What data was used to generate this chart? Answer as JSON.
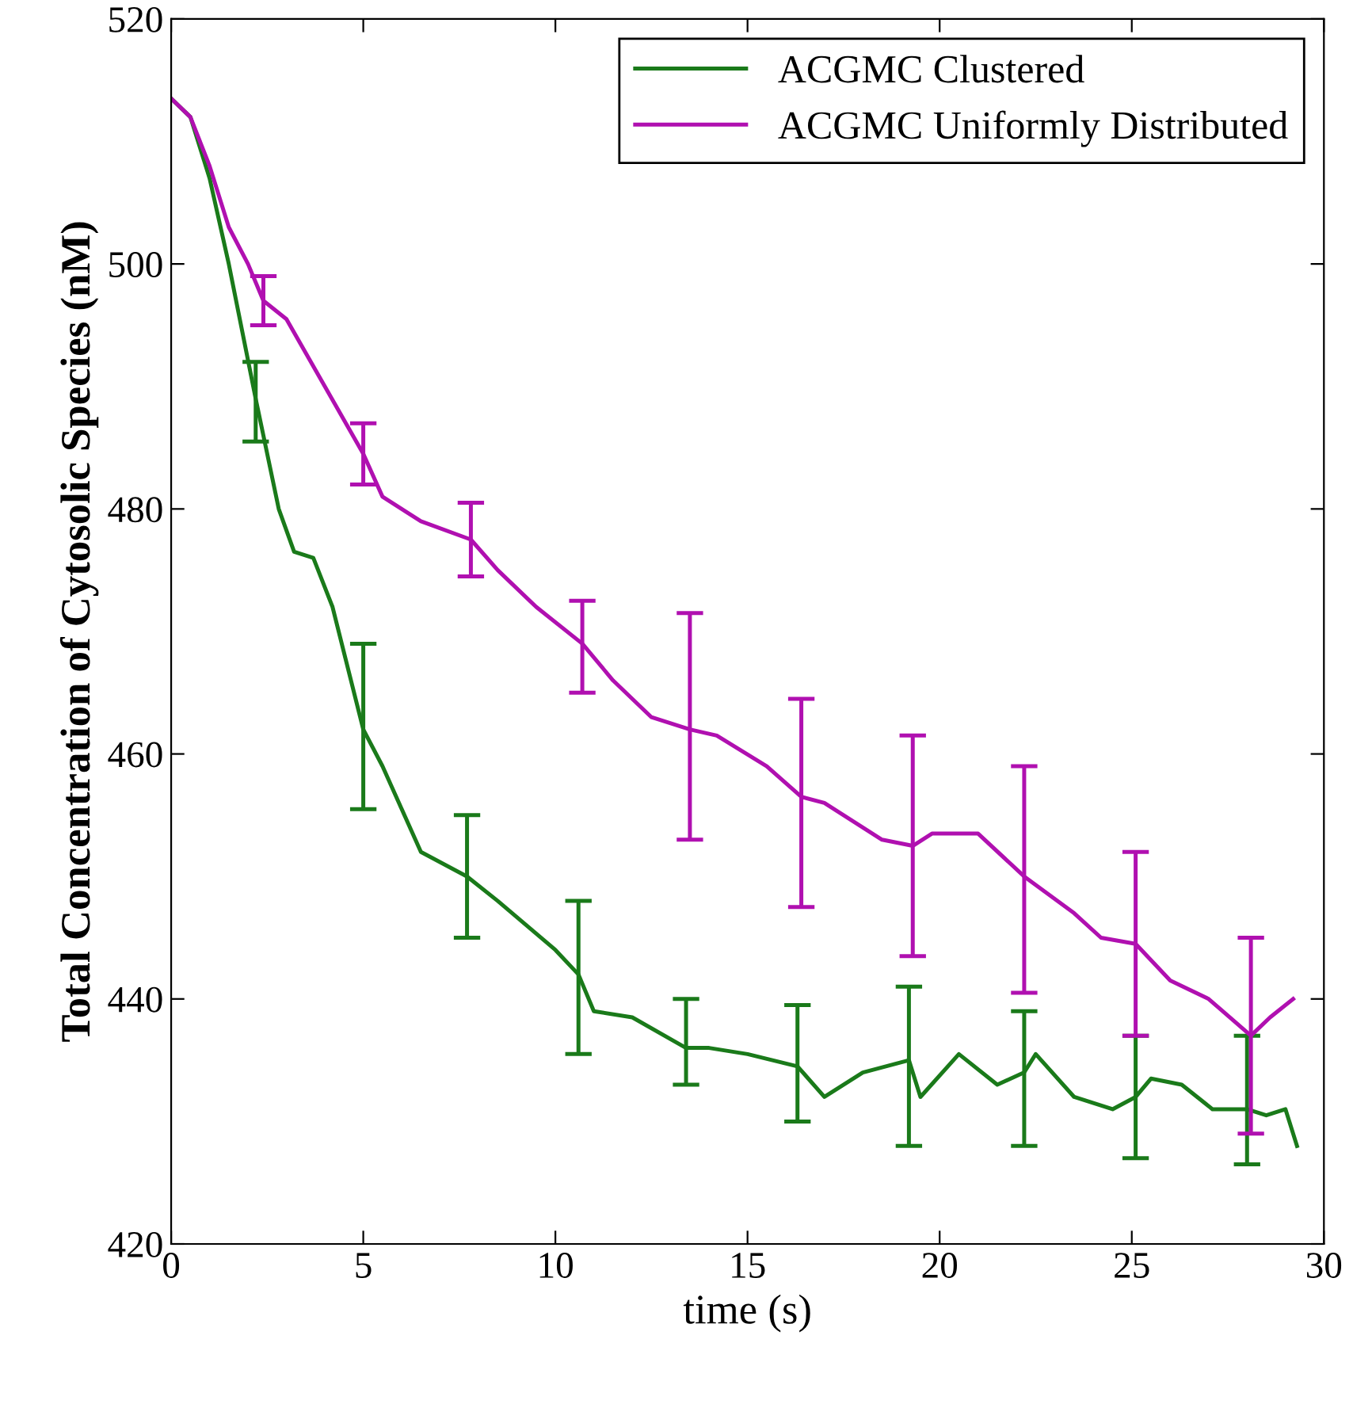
{
  "chart_data": {
    "type": "line",
    "xlabel": "time (s)",
    "ylabel": "Total Concentration of Cytosolic Species (nM)",
    "xlim": [
      0,
      30
    ],
    "ylim": [
      420,
      520
    ],
    "xticks": [
      0,
      5,
      10,
      15,
      20,
      25,
      30
    ],
    "yticks": [
      420,
      440,
      460,
      480,
      500,
      520
    ],
    "grid": false,
    "legend": "top right",
    "marker": "none",
    "line_style": "solid",
    "series": [
      {
        "name": "ACGMC Clustered",
        "color": "#1a7a1a",
        "x": [
          0,
          0.5,
          1,
          1.5,
          2.2,
          2.8,
          3.2,
          3.7,
          4.2,
          5,
          5.5,
          6.5,
          7.7,
          8.5,
          10,
          10.6,
          11,
          12,
          13.4,
          14,
          15,
          16.3,
          17,
          18,
          19.2,
          19.5,
          20.5,
          21.5,
          22.2,
          22.5,
          23.5,
          24.5,
          25.1,
          25.5,
          26.3,
          27.1,
          28,
          28.5,
          29,
          29.3
        ],
        "values": [
          513.5,
          512,
          507,
          500,
          489,
          480,
          476.5,
          476,
          472,
          462,
          459,
          452,
          450,
          448,
          444,
          442,
          439,
          438.5,
          436,
          436,
          435.5,
          434.5,
          432,
          434,
          435,
          432,
          435.5,
          433,
          434,
          435.5,
          432,
          431,
          432,
          433.5,
          433,
          431,
          431,
          430.5,
          431,
          428
        ],
        "errors": [
          null,
          null,
          null,
          null,
          [
            485.5,
            492
          ],
          null,
          null,
          null,
          null,
          [
            455.5,
            469
          ],
          null,
          null,
          [
            445,
            455
          ],
          null,
          null,
          [
            435.5,
            448
          ],
          null,
          null,
          [
            433,
            440
          ],
          null,
          null,
          [
            430,
            439.5
          ],
          null,
          null,
          [
            428,
            441
          ],
          null,
          null,
          null,
          [
            428,
            439
          ],
          null,
          null,
          null,
          [
            427,
            437
          ],
          null,
          null,
          null,
          [
            426.5,
            437
          ],
          null,
          null,
          null
        ]
      },
      {
        "name": "ACGMC Uniformly Distributed",
        "color": "#b010b0",
        "x": [
          0,
          0.5,
          1,
          1.5,
          2,
          2.4,
          3,
          4,
          5,
          5.5,
          6.5,
          7.8,
          8.5,
          9.5,
          10.7,
          11.5,
          12.5,
          13.5,
          14.2,
          15.5,
          16.4,
          17,
          18.5,
          19.3,
          19.8,
          21,
          22.2,
          23.5,
          24.2,
          25.1,
          26,
          27,
          28.1,
          28.6,
          29.2
        ],
        "values": [
          513.5,
          512,
          508,
          503,
          500,
          497,
          495.5,
          490,
          484.5,
          481,
          479,
          477.5,
          475,
          472,
          469,
          466,
          463,
          462,
          461.5,
          459,
          456.5,
          456,
          453,
          452.5,
          453.5,
          453.5,
          450,
          447,
          445,
          444.5,
          441.5,
          440,
          437,
          438.5,
          440
        ],
        "errors": [
          null,
          null,
          null,
          null,
          null,
          [
            495,
            499
          ],
          null,
          null,
          [
            482,
            487
          ],
          null,
          null,
          [
            474.5,
            480.5
          ],
          null,
          null,
          [
            465,
            472.5
          ],
          null,
          null,
          [
            453,
            471.5
          ],
          null,
          null,
          [
            447.5,
            464.5
          ],
          null,
          null,
          [
            443.5,
            461.5
          ],
          null,
          null,
          [
            440.5,
            459
          ],
          null,
          null,
          [
            437,
            452
          ],
          null,
          null,
          [
            429,
            445
          ],
          null,
          null
        ]
      }
    ]
  }
}
